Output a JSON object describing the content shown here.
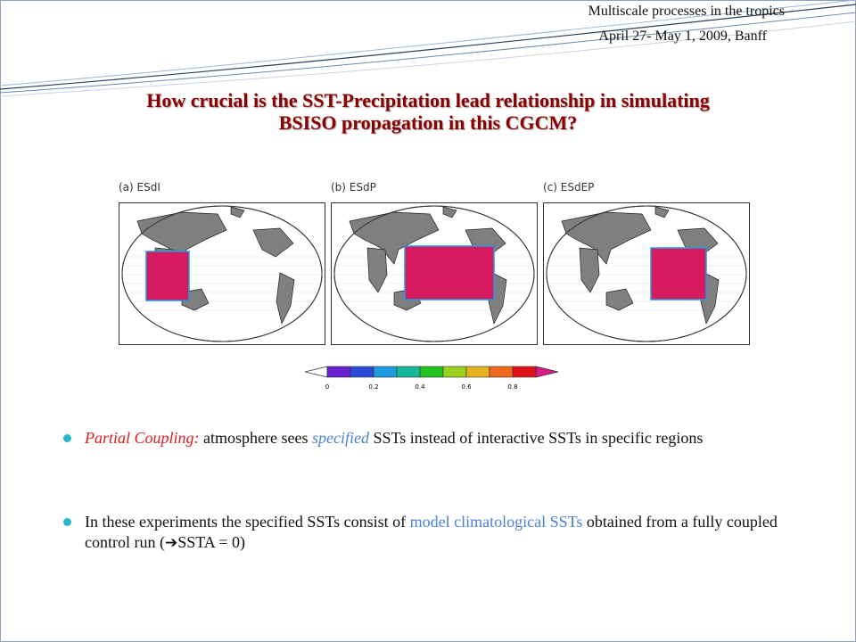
{
  "header": {
    "line1": "Multiscale processes in the tropics",
    "line2": "April 27- May 1, 2009, Banff"
  },
  "title": {
    "line1": "How crucial is the SST-Precipitation lead relationship in simulating",
    "line2": "BSISO propagation in this CGCM?"
  },
  "panels": [
    {
      "label": "(a) ESdI",
      "region": "Indian Ocean"
    },
    {
      "label": "(b) ESdP",
      "region": "Pacific Ocean"
    },
    {
      "label": "(c) ESdEP",
      "region": "East Pacific Ocean"
    }
  ],
  "colorbar": {
    "ticks": [
      "0",
      "0.2",
      "0.4",
      "0.6",
      "0.8"
    ],
    "colors": [
      "#6a1fd0",
      "#2a49d6",
      "#1f9be0",
      "#19b79a",
      "#1fc21f",
      "#9ad21f",
      "#e6b21f",
      "#ef6a1f",
      "#e0101a"
    ],
    "arrow_low": "#ffffff",
    "arrow_high": "#d61a8a"
  },
  "bullets": {
    "b1_lead": "Partial Coupling:",
    "b1_a": " atmosphere sees ",
    "b1_em": "specified",
    "b1_b": " SSTs instead of interactive SSTs in specific regions",
    "b2_a": "In these experiments the specified SSTs consist of ",
    "b2_em": "model climatological SSTs",
    "b2_b": " obtained from a fully coupled control run (",
    "b2_arrow": "➔",
    "b2_c": "SSTA = 0)"
  },
  "colors": {
    "title": "#8b0000",
    "bullet_dot": "#2bb3c7",
    "highlight_red": "#e31b1b",
    "highlight_blue": "#4a7fd6",
    "forcing_region": "#d81b60",
    "land": "#7f7f7f"
  }
}
